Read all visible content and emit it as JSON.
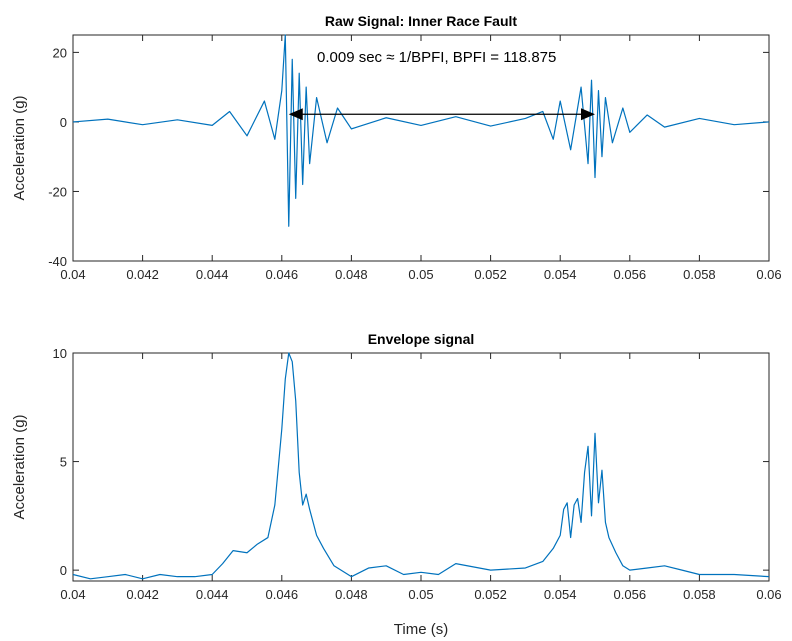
{
  "chart_data": [
    {
      "type": "line",
      "title": "Raw Signal: Inner Race Fault",
      "xlabel": "",
      "ylabel": "Acceleration (g)",
      "xlim": [
        0.04,
        0.06
      ],
      "ylim": [
        -40,
        25
      ],
      "xticks": [
        "0.04",
        "0.042",
        "0.044",
        "0.046",
        "0.048",
        "0.05",
        "0.052",
        "0.054",
        "0.056",
        "0.058",
        "0.06"
      ],
      "yticks": [
        "20",
        "0",
        "-20",
        "-40"
      ],
      "yticks_values": [
        20,
        0,
        -20,
        -40
      ],
      "annotation": "0.009 sec ≈ 1/BPFI, BPFI = 118.875",
      "arrow": {
        "x_start": 0.0462,
        "x_end": 0.055,
        "y": 2.2
      },
      "line_color": "#0072BD",
      "series": [
        {
          "x": [
            0.04,
            0.041,
            0.042,
            0.043,
            0.044,
            0.0445,
            0.045,
            0.0455,
            0.0458,
            0.046,
            0.0461,
            0.0462,
            0.0463,
            0.0464,
            0.0465,
            0.0466,
            0.0467,
            0.0468,
            0.047,
            0.0473,
            0.0476,
            0.048,
            0.049,
            0.05,
            0.051,
            0.052,
            0.053,
            0.0535,
            0.0538,
            0.054,
            0.0543,
            0.0546,
            0.0548,
            0.0549,
            0.055,
            0.0551,
            0.0552,
            0.0553,
            0.0555,
            0.0558,
            0.056,
            0.0565,
            0.057,
            0.058,
            0.059,
            0.06
          ],
          "values": [
            0,
            0.8,
            -0.8,
            0.6,
            -1,
            3,
            -4,
            6,
            -5,
            9,
            25,
            -30,
            18,
            -22,
            14,
            -18,
            10,
            -12,
            7,
            -6,
            4,
            -2,
            1.2,
            -1,
            1.5,
            -1.2,
            1,
            3,
            -5,
            6,
            -8,
            10,
            -12,
            12,
            -16,
            9,
            -10,
            7,
            -6,
            4,
            -3,
            2,
            -1.5,
            1,
            -0.8,
            0
          ]
        }
      ]
    },
    {
      "type": "line",
      "title": "Envelope signal",
      "xlabel": "Time (s)",
      "ylabel": "Acceleration (g)",
      "xlim": [
        0.04,
        0.06
      ],
      "ylim": [
        -0.5,
        10
      ],
      "xticks": [
        "0.04",
        "0.042",
        "0.044",
        "0.046",
        "0.048",
        "0.05",
        "0.052",
        "0.054",
        "0.056",
        "0.058",
        "0.06"
      ],
      "yticks": [
        "10",
        "5",
        "0"
      ],
      "yticks_values": [
        10,
        5,
        0
      ],
      "line_color": "#0072BD",
      "series": [
        {
          "x": [
            0.04,
            0.0405,
            0.041,
            0.0415,
            0.042,
            0.0425,
            0.043,
            0.0435,
            0.044,
            0.0443,
            0.0446,
            0.045,
            0.0453,
            0.0456,
            0.0458,
            0.046,
            0.0461,
            0.0462,
            0.0463,
            0.0464,
            0.0465,
            0.0466,
            0.0467,
            0.0468,
            0.047,
            0.0472,
            0.0475,
            0.048,
            0.0485,
            0.049,
            0.0495,
            0.05,
            0.0505,
            0.051,
            0.052,
            0.053,
            0.0535,
            0.0538,
            0.054,
            0.0541,
            0.0542,
            0.0543,
            0.0544,
            0.0545,
            0.0546,
            0.0547,
            0.0548,
            0.0549,
            0.055,
            0.0551,
            0.0552,
            0.0553,
            0.0554,
            0.0556,
            0.0558,
            0.056,
            0.0565,
            0.057,
            0.0575,
            0.058,
            0.059,
            0.06
          ],
          "values": [
            -0.2,
            -0.4,
            -0.3,
            -0.2,
            -0.4,
            -0.2,
            -0.3,
            -0.3,
            -0.2,
            0.3,
            0.9,
            0.8,
            1.2,
            1.5,
            3.0,
            6.5,
            8.8,
            10.0,
            9.6,
            7.8,
            4.5,
            3.0,
            3.5,
            2.8,
            1.6,
            1.0,
            0.2,
            -0.3,
            0.1,
            0.2,
            -0.2,
            -0.1,
            -0.2,
            0.3,
            0.0,
            0.1,
            0.4,
            1.0,
            1.6,
            2.8,
            3.1,
            1.5,
            3.0,
            3.3,
            2.2,
            4.5,
            5.7,
            2.5,
            6.3,
            3.1,
            4.6,
            2.2,
            1.5,
            0.8,
            0.2,
            0.0,
            0.1,
            0.2,
            0.0,
            -0.2,
            -0.2,
            -0.3
          ]
        }
      ]
    }
  ]
}
